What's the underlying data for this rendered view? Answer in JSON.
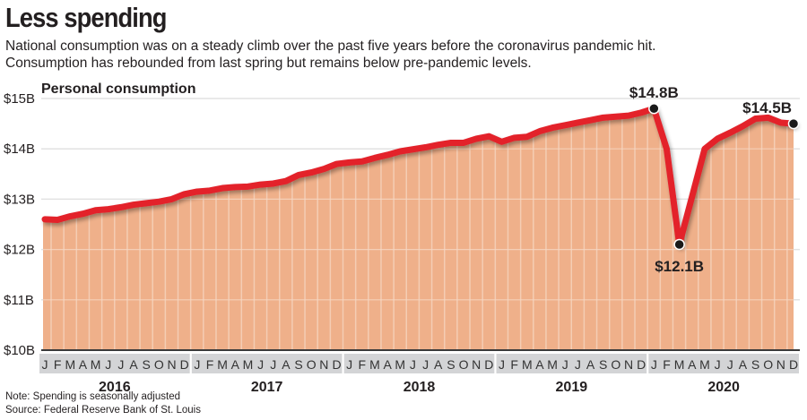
{
  "header": {
    "title": "Less spending",
    "subtitle_line1": "National consumption was on a steady climb over the past five years before the coronavirus pandemic hit.",
    "subtitle_line2": "Consumption has rebounded from last spring but remains below pre-pandemic levels."
  },
  "footer": {
    "note": "Note: Spending is seasonally adjusted",
    "source": "Source: Federal Reserve Bank of St. Louis"
  },
  "colors": {
    "line": "#e3202a",
    "area": "#efb08a",
    "month_band": "#d3d4d6",
    "grid": "#e2e2e2",
    "dot": "#1a1a1a"
  },
  "chart_data": {
    "type": "area",
    "title": "Personal consumption",
    "xlabel": "",
    "ylabel": "",
    "ylim": [
      10,
      15
    ],
    "yticks": [
      10,
      11,
      12,
      13,
      14,
      15
    ],
    "ytick_labels": [
      "$10B",
      "$11B",
      "$12B",
      "$13B",
      "$14B",
      "$15B"
    ],
    "grid": true,
    "years": [
      "2016",
      "2017",
      "2018",
      "2019",
      "2020"
    ],
    "month_labels": [
      "J",
      "F",
      "M",
      "A",
      "M",
      "J",
      "J",
      "A",
      "S",
      "O",
      "N",
      "D"
    ],
    "series": [
      {
        "name": "Personal consumption ($B)",
        "values": [
          12.6,
          12.59,
          12.66,
          12.71,
          12.78,
          12.8,
          12.84,
          12.89,
          12.92,
          12.95,
          13.0,
          13.1,
          13.15,
          13.17,
          13.22,
          13.24,
          13.25,
          13.29,
          13.31,
          13.36,
          13.48,
          13.53,
          13.6,
          13.7,
          13.73,
          13.75,
          13.82,
          13.88,
          13.95,
          13.99,
          14.03,
          14.08,
          14.12,
          14.12,
          14.2,
          14.25,
          14.14,
          14.22,
          14.24,
          14.35,
          14.42,
          14.47,
          14.52,
          14.57,
          14.62,
          14.64,
          14.66,
          14.72,
          14.8,
          14.0,
          12.1,
          13.05,
          14.0,
          14.2,
          14.32,
          14.45,
          14.6,
          14.62,
          14.52,
          14.5
        ]
      }
    ],
    "annotations": [
      {
        "index": 48,
        "label": "$14.8B",
        "position": "above"
      },
      {
        "index": 50,
        "label": "$12.1B",
        "position": "below"
      },
      {
        "index": 59,
        "label": "$14.5B",
        "position": "above"
      }
    ]
  }
}
